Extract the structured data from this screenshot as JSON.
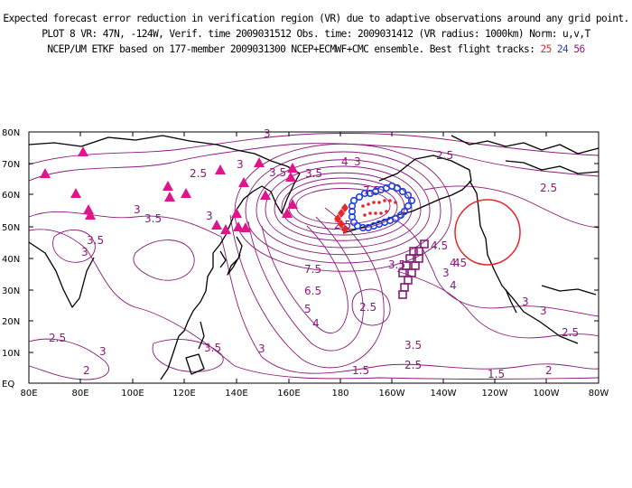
{
  "header": {
    "line1": "Expected forecast error reduction in verification region (VR) due to adaptive observations around any grid point.",
    "line2": "PLOT 8 VR: 47N, -124W, Verif. time 2009031512 Obs. time: 2009031412 (VR radius: 1000km) Norm: u,v,T",
    "line3_prefix": "NCEP/UM ETKF based on 177-member 2009031300 NCEP+ECMWF+CMC ensemble. Best flight tracks: ",
    "track_a": "25",
    "track_b": "24",
    "track_c": "56"
  },
  "map": {
    "lat_ticks": [
      "0",
      "10N",
      "20N",
      "30N",
      "40N",
      "50N",
      "60N",
      "70N",
      "80N"
    ],
    "lon_ticks": [
      "80E",
      "80E",
      "100E",
      "120E",
      "140E",
      "160E",
      "180",
      "160W",
      "140W",
      "120W",
      "100W",
      "80W"
    ],
    "contour_labels": [
      "2.5",
      "2.5",
      "2.5",
      "2.5",
      "2.5",
      "2.5",
      "2.5",
      "2.5",
      "3",
      "3",
      "3",
      "3",
      "3",
      "3",
      "3",
      "3",
      "3",
      "3",
      "3",
      "3.5",
      "3.5",
      "3.5",
      "3.5",
      "3.5",
      "3.5",
      "3.5",
      "4",
      "4",
      "4",
      "4",
      "4.5",
      "4.5",
      "5",
      "6.5",
      "7.5",
      "7.5",
      "2",
      "2",
      "1.5",
      "1.5"
    ],
    "colors": {
      "contour": "#8b1a7a",
      "coast": "#000000",
      "station_marker": "#e0158c",
      "track_a": "#e8262b",
      "track_b": "#2443d8",
      "track_c": "#8b1a7a",
      "vr_circle": "#e8262b"
    }
  }
}
